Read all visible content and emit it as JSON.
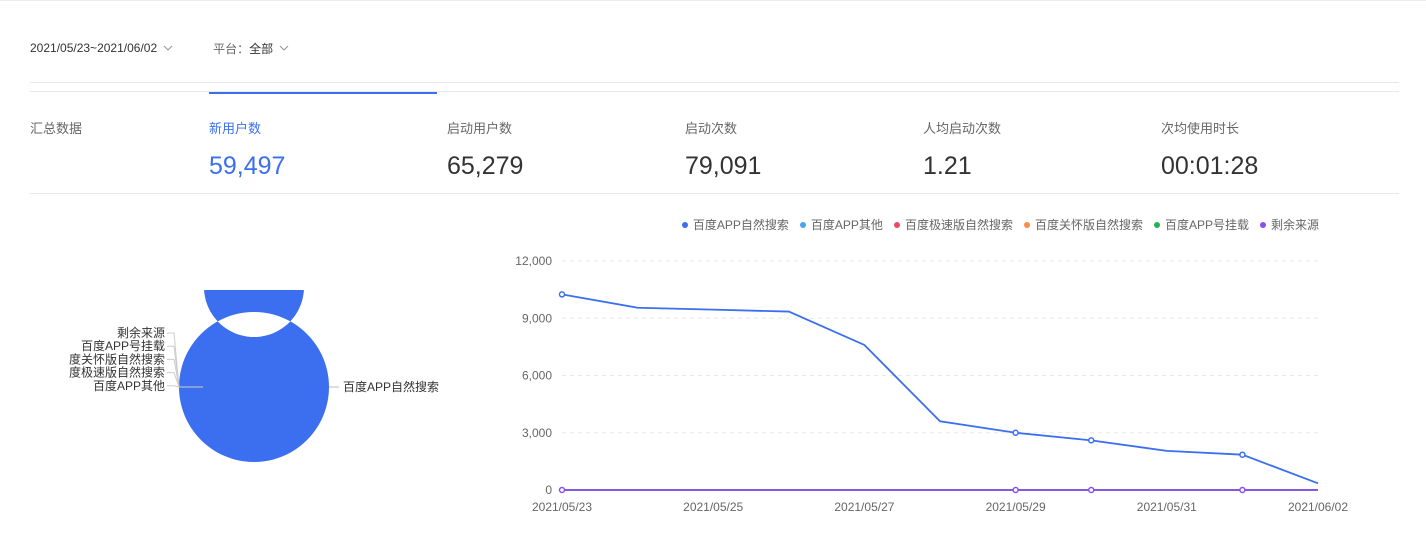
{
  "filters": {
    "date_range": "2021/05/23~2021/06/02",
    "platform_prefix": "平台：",
    "platform_value": "全部"
  },
  "summary": {
    "label": "汇总数据",
    "tabs": [
      {
        "label": "新用户数",
        "value": "59,497",
        "active": true
      },
      {
        "label": "启动用户数",
        "value": "65,279",
        "active": false
      },
      {
        "label": "启动次数",
        "value": "79,091",
        "active": false
      },
      {
        "label": "人均启动次数",
        "value": "1.21",
        "active": false
      },
      {
        "label": "次均使用时长",
        "value": "00:01:28",
        "active": false
      }
    ]
  },
  "legend": [
    {
      "name": "百度APP自然搜索",
      "color": "#3b6ff0"
    },
    {
      "name": "百度APP其他",
      "color": "#4aa3f0"
    },
    {
      "name": "百度极速版自然搜索",
      "color": "#f04864"
    },
    {
      "name": "百度关怀版自然搜索",
      "color": "#fa8c4b"
    },
    {
      "name": "百度APP号挂载",
      "color": "#25b05a"
    },
    {
      "name": "剩余来源",
      "color": "#8a4ff0"
    }
  ],
  "chart_data": [
    {
      "type": "pie",
      "variant": "donut",
      "slices": [
        {
          "name": "百度APP自然搜索",
          "label": "百度APP自然搜索",
          "value": 59497,
          "color": "#3b6ff0"
        },
        {
          "name": "百度APP其他",
          "label": "百度APP其他",
          "value": 0,
          "color": "#4aa3f0"
        },
        {
          "name": "百度极速版自然搜索",
          "label": "度极速版自然搜索",
          "value": 0,
          "color": "#f04864"
        },
        {
          "name": "百度关怀版自然搜索",
          "label": "度关怀版自然搜索",
          "value": 0,
          "color": "#fa8c4b"
        },
        {
          "name": "百度APP号挂载",
          "label": "百度APP号挂载",
          "value": 0,
          "color": "#25b05a"
        },
        {
          "name": "剩余来源",
          "label": "剩余来源",
          "value": 0,
          "color": "#8a4ff0"
        }
      ]
    },
    {
      "type": "line",
      "x": [
        "2021/05/23",
        "2021/05/24",
        "2021/05/25",
        "2021/05/26",
        "2021/05/27",
        "2021/05/28",
        "2021/05/29",
        "2021/05/30",
        "2021/05/31",
        "2021/06/01",
        "2021/06/02"
      ],
      "x_tick_labels": [
        "2021/05/23",
        "2021/05/25",
        "2021/05/27",
        "2021/05/29",
        "2021/05/31",
        "2021/06/02"
      ],
      "y_tick_labels": [
        "0",
        "3,000",
        "6,000",
        "9,000",
        "12,000"
      ],
      "ylim": [
        0,
        12000
      ],
      "grid": true,
      "legend_position": "top-right",
      "series": [
        {
          "name": "百度APP自然搜索",
          "color": "#3b6ff0",
          "values": [
            10250,
            9550,
            9450,
            9350,
            7600,
            3600,
            3000,
            2600,
            2050,
            1850,
            350
          ],
          "markers": [
            0,
            6,
            7,
            9
          ]
        },
        {
          "name": "百度APP其他",
          "color": "#4aa3f0",
          "values": [
            0,
            0,
            0,
            0,
            0,
            0,
            0,
            0,
            0,
            0,
            0
          ],
          "markers": []
        },
        {
          "name": "百度极速版自然搜索",
          "color": "#f04864",
          "values": [
            0,
            0,
            0,
            0,
            0,
            0,
            0,
            0,
            0,
            0,
            0
          ],
          "markers": []
        },
        {
          "name": "百度关怀版自然搜索",
          "color": "#fa8c4b",
          "values": [
            0,
            0,
            0,
            0,
            0,
            0,
            0,
            0,
            0,
            0,
            0
          ],
          "markers": []
        },
        {
          "name": "百度APP号挂载",
          "color": "#25b05a",
          "values": [
            0,
            0,
            0,
            0,
            0,
            0,
            0,
            0,
            0,
            0,
            0
          ],
          "markers": []
        },
        {
          "name": "剩余来源",
          "color": "#8a4ff0",
          "values": [
            0,
            0,
            0,
            0,
            0,
            0,
            0,
            0,
            0,
            0,
            0
          ],
          "markers": [
            0,
            6,
            7,
            9
          ]
        }
      ]
    }
  ]
}
